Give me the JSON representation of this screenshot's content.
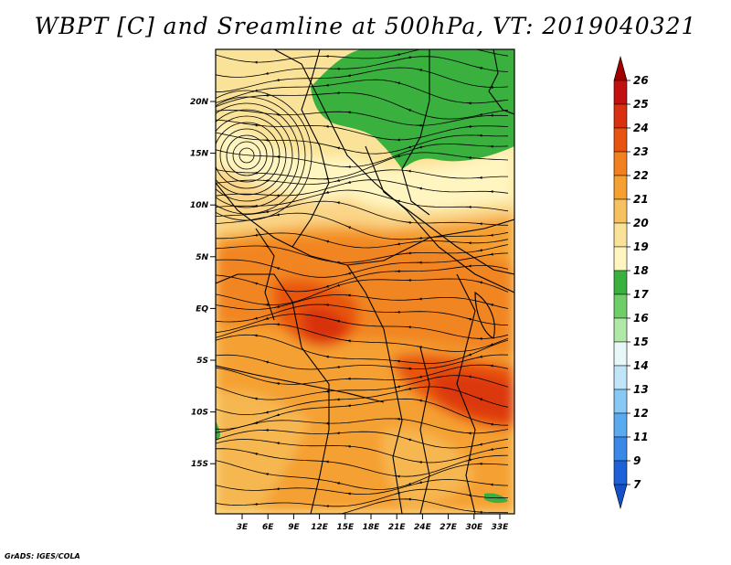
{
  "title": "WBPT [C] and Sreamline at 500hPa, VT: 2019040321",
  "credit": "GrADS: IGES/COLA",
  "map": {
    "lat_labels": [
      "20N",
      "15N",
      "10N",
      "5N",
      "EQ",
      "5S",
      "10S",
      "15S"
    ],
    "lon_labels": [
      "3E",
      "6E",
      "9E",
      "12E",
      "15E",
      "18E",
      "21E",
      "24E",
      "27E",
      "30E",
      "33E"
    ],
    "region": "Central Africa"
  },
  "colorbar": {
    "levels": [
      "26",
      "25",
      "24",
      "23",
      "22",
      "21",
      "20",
      "19",
      "18",
      "17",
      "16",
      "15",
      "14",
      "13",
      "12",
      "11",
      "9",
      "7"
    ],
    "colors": [
      "#a00000",
      "#c01010",
      "#d83010",
      "#e85410",
      "#f08020",
      "#f5a030",
      "#f7c060",
      "#fae398",
      "#fff5c0",
      "#3ab13e",
      "#6fce6a",
      "#b0e8a8",
      "#e8f8f8",
      "#c0e4f8",
      "#88c8f4",
      "#5aaaf0",
      "#3a88e8",
      "#1e60d8",
      "#1450c8"
    ]
  }
}
